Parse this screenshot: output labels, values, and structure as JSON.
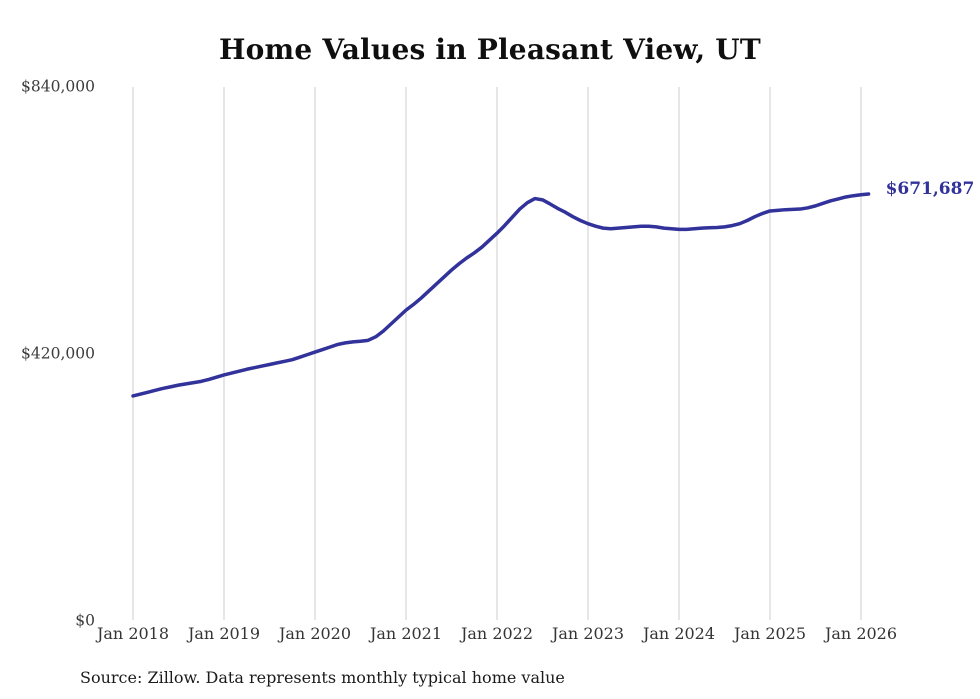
{
  "title": "Home Values in Pleasant View, UT",
  "source_note": "Source: Zillow. Data represents monthly typical home value",
  "colors": {
    "line": "#32329B",
    "end_label": "#32329B",
    "gridline": "#CCCCCC",
    "title_text": "#0F0F0F",
    "axis_text": "#3C3C3C",
    "source_text": "#1B1B1B",
    "background": "#FFFFFF"
  },
  "chart_data": {
    "type": "line",
    "title": "Home Values in Pleasant View, UT",
    "xlabel": "",
    "ylabel": "",
    "ylim": [
      0,
      840000
    ],
    "grid": "vertical-only",
    "legend": "none",
    "x_tick_labels": [
      "Jan 2018",
      "Jan 2019",
      "Jan 2020",
      "Jan 2021",
      "Jan 2022",
      "Jan 2023",
      "Jan 2024",
      "Jan 2025",
      "Jan 2026"
    ],
    "y_ticks": [
      {
        "label": "$0",
        "value": 0
      },
      {
        "label": "$420,000",
        "value": 420000
      },
      {
        "label": "$840,000",
        "value": 840000
      }
    ],
    "annotation": {
      "text": "$671,687",
      "position": "end-of-line"
    },
    "series": [
      {
        "name": "Monthly typical home value",
        "start_month": "2018-01",
        "end_month": "2026-02",
        "final_value": 671687,
        "values": [
          354000,
          357000,
          360000,
          363000,
          366000,
          368500,
          371000,
          373000,
          375000,
          377000,
          380000,
          383500,
          387000,
          390000,
          393000,
          396000,
          398500,
          401000,
          403500,
          406000,
          408500,
          411000,
          415000,
          419000,
          423000,
          427000,
          431000,
          435000,
          437500,
          439000,
          440000,
          441500,
          447000,
          456000,
          467000,
          478000,
          489000,
          498000,
          508000,
          519000,
          530000,
          541000,
          552000,
          562000,
          571000,
          579000,
          588000,
          599000,
          610000,
          622000,
          635000,
          648000,
          658000,
          664500,
          662500,
          656000,
          649000,
          643000,
          636000,
          630000,
          625000,
          621000,
          618000,
          617000,
          618000,
          619000,
          620000,
          621000,
          621000,
          620000,
          618000,
          617000,
          616000,
          616000,
          617000,
          618000,
          618500,
          619000,
          620000,
          622000,
          625000,
          630000,
          636000,
          641000,
          645000,
          646000,
          647000,
          647500,
          648000,
          650000,
          653000,
          657000,
          661000,
          664000,
          667000,
          669000,
          670500,
          671687
        ]
      }
    ]
  }
}
